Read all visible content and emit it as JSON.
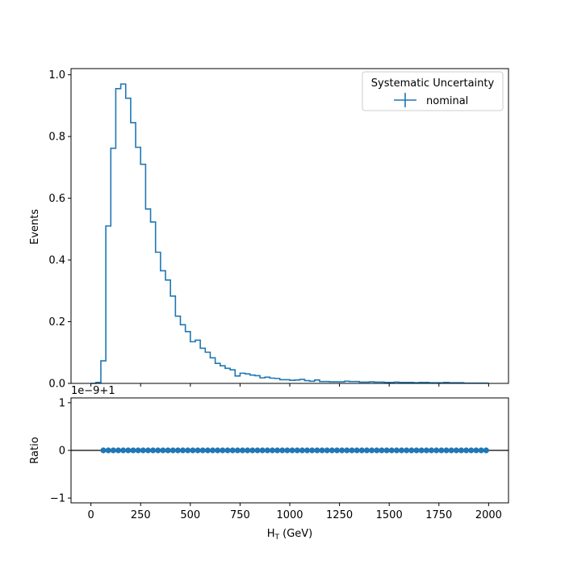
{
  "chart_data": [
    {
      "type": "line",
      "drawstyle": "steps",
      "ylabel": "Events",
      "xlim": [
        -100,
        2100
      ],
      "ylim": [
        0,
        1.02
      ],
      "yticks": [
        "0.0",
        "0.2",
        "0.4",
        "0.6",
        "0.8",
        "1.0"
      ],
      "legend": {
        "title": "Systematic Uncertainty",
        "entries": [
          "nominal"
        ],
        "placement": "top-right"
      },
      "series": [
        {
          "name": "nominal",
          "color": "#1f77b4",
          "bin_edges": [
            0,
            25,
            50,
            75,
            100,
            125,
            150,
            175,
            200,
            225,
            250,
            275,
            300,
            325,
            350,
            375,
            400,
            425,
            450,
            475,
            500,
            525,
            550,
            575,
            600,
            625,
            650,
            675,
            700,
            725,
            750,
            775,
            800,
            825,
            850,
            875,
            900,
            925,
            950,
            975,
            1000,
            1025,
            1050,
            1075,
            1100,
            1125,
            1150,
            1175,
            1200,
            1225,
            1250,
            1275,
            1300,
            1325,
            1350,
            1375,
            1400,
            1425,
            1450,
            1475,
            1500,
            1525,
            1550,
            1575,
            1600,
            1625,
            1650,
            1675,
            1700,
            1725,
            1750,
            1775,
            1800,
            1825,
            1850,
            1875,
            1900,
            1925,
            1950,
            1975,
            2000
          ],
          "values": [
            0.0,
            0.003,
            0.073,
            0.51,
            0.762,
            0.955,
            0.97,
            0.924,
            0.845,
            0.765,
            0.71,
            0.565,
            0.523,
            0.425,
            0.365,
            0.335,
            0.283,
            0.218,
            0.19,
            0.168,
            0.135,
            0.14,
            0.114,
            0.101,
            0.083,
            0.065,
            0.057,
            0.049,
            0.044,
            0.024,
            0.033,
            0.031,
            0.027,
            0.025,
            0.018,
            0.02,
            0.017,
            0.016,
            0.012,
            0.012,
            0.01,
            0.011,
            0.013,
            0.009,
            0.007,
            0.011,
            0.006,
            0.006,
            0.005,
            0.005,
            0.005,
            0.007,
            0.006,
            0.006,
            0.004,
            0.004,
            0.005,
            0.004,
            0.004,
            0.003,
            0.003,
            0.004,
            0.003,
            0.003,
            0.003,
            0.002,
            0.003,
            0.003,
            0.002,
            0.002,
            0.002,
            0.003,
            0.002,
            0.002,
            0.002,
            0.001,
            0.001,
            0.001,
            0.001,
            0.001
          ]
        }
      ]
    },
    {
      "type": "scatter",
      "ylabel": "Ratio",
      "xlabel": "H",
      "xlabel_sub": "T",
      "xlabel_suffix": " (GeV)",
      "offset_label": "1e−9+1",
      "xlim": [
        -100,
        2100
      ],
      "ylim": [
        -1.1,
        1.1
      ],
      "yticks": [
        "−1",
        "0",
        "1"
      ],
      "xticks": [
        "0",
        "250",
        "500",
        "750",
        "1000",
        "1250",
        "1500",
        "1750",
        "2000"
      ],
      "reference_line": 0,
      "series": [
        {
          "name": "nominal",
          "color": "#1f77b4",
          "x": [
            62.5,
            87.5,
            112.5,
            137.5,
            162.5,
            187.5,
            212.5,
            237.5,
            262.5,
            287.5,
            312.5,
            337.5,
            362.5,
            387.5,
            412.5,
            437.5,
            462.5,
            487.5,
            512.5,
            537.5,
            562.5,
            587.5,
            612.5,
            637.5,
            662.5,
            687.5,
            712.5,
            737.5,
            762.5,
            787.5,
            812.5,
            837.5,
            862.5,
            887.5,
            912.5,
            937.5,
            962.5,
            987.5,
            1012.5,
            1037.5,
            1062.5,
            1087.5,
            1112.5,
            1137.5,
            1162.5,
            1187.5,
            1212.5,
            1237.5,
            1262.5,
            1287.5,
            1312.5,
            1337.5,
            1362.5,
            1387.5,
            1412.5,
            1437.5,
            1462.5,
            1487.5,
            1512.5,
            1537.5,
            1562.5,
            1587.5,
            1612.5,
            1637.5,
            1662.5,
            1687.5,
            1712.5,
            1737.5,
            1762.5,
            1787.5,
            1812.5,
            1837.5,
            1862.5,
            1887.5,
            1912.5,
            1937.5,
            1962.5,
            1987.5
          ],
          "y_value": 0
        }
      ]
    }
  ]
}
